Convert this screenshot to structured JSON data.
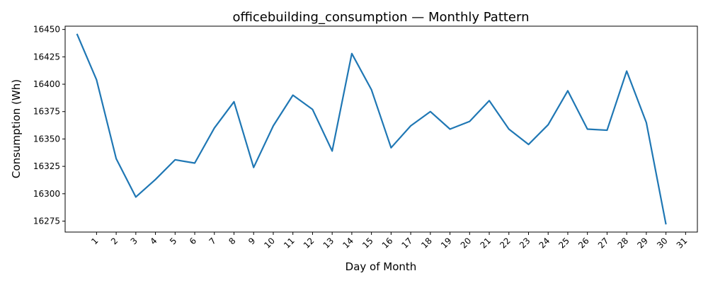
{
  "chart_data": {
    "type": "line",
    "title": "officebuilding_consumption — Monthly Pattern",
    "xlabel": "Day of Month",
    "ylabel": "Consumption (Wh)",
    "x_ticks": [
      "1",
      "2",
      "3",
      "4",
      "5",
      "6",
      "7",
      "8",
      "9",
      "10",
      "11",
      "12",
      "13",
      "14",
      "15",
      "16",
      "17",
      "18",
      "19",
      "20",
      "21",
      "22",
      "23",
      "24",
      "25",
      "26",
      "27",
      "28",
      "29",
      "30",
      "31"
    ],
    "xlim": [
      -0.6,
      31.6
    ],
    "y_ticks": [
      16275,
      16300,
      16325,
      16350,
      16375,
      16400,
      16425,
      16450
    ],
    "ylim": [
      16265,
      16453
    ],
    "grid": false,
    "series": [
      {
        "color": "#1f77b4",
        "x": [
          0,
          1,
          2,
          3,
          4,
          5,
          6,
          7,
          8,
          9,
          10,
          11,
          12,
          13,
          14,
          15,
          16,
          17,
          18,
          19,
          20,
          21,
          22,
          23,
          24,
          25,
          26,
          27,
          28,
          29,
          30
        ],
        "y": [
          16446,
          16404,
          16332,
          16297,
          16313,
          16331,
          16328,
          16360,
          16384,
          16324,
          16362,
          16390,
          16377,
          16339,
          16428,
          16395,
          16342,
          16362,
          16375,
          16359,
          16366,
          16385,
          16359,
          16345,
          16363,
          16394,
          16359,
          16358,
          16412,
          16365,
          16272
        ]
      }
    ]
  }
}
